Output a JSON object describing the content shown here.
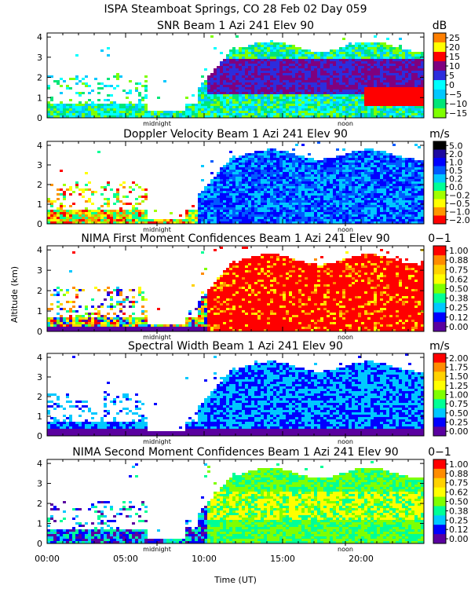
{
  "header": {
    "title": "ISPA Steamboat Springs, CO  28 Feb 02 Day 059"
  },
  "axes": {
    "ylabel": "Altitude (km)",
    "xlabel": "Time (UT)",
    "x_tick_labels": [
      "00:00",
      "05:00",
      "10:00",
      "15:00",
      "20:00"
    ],
    "y_tick_labels": [
      "0",
      "1",
      "2",
      "3",
      "4"
    ],
    "midnight_label": "midnight",
    "noon_label": "noon"
  },
  "chart_data": [
    {
      "type": "heatmap",
      "title": "SNR Beam 1 Azi 241 Elev 90",
      "units": "dB",
      "xlim": [
        0,
        24
      ],
      "ylim": [
        0,
        4.2
      ],
      "colorbar_ticks": [
        "25",
        "20",
        "15",
        "10",
        "5",
        "0",
        "−5",
        "−10",
        "−15"
      ],
      "colors": [
        "#ff7f00",
        "#ffff00",
        "#ff0000",
        "#7f007f",
        "#2d2ddd",
        "#00ffff",
        "#00c8ff",
        "#00e678",
        "#7fff00"
      ]
    },
    {
      "type": "heatmap",
      "title": "Doppler Velocity Beam 1 Azi 241 Elev 90",
      "units": "m/s",
      "xlim": [
        0,
        24
      ],
      "ylim": [
        0,
        4.2
      ],
      "colorbar_ticks": [
        "5.0",
        "2.0",
        "1.0",
        "0.5",
        "0.2",
        "0.0",
        "−0.2",
        "−0.5",
        "−1.0",
        "−2.0"
      ],
      "colors": [
        "#000000",
        "#1e0aa0",
        "#0000ff",
        "#005aff",
        "#00c8ff",
        "#00ff96",
        "#a0ff00",
        "#ffff00",
        "#ff9600",
        "#ff0000"
      ]
    },
    {
      "type": "heatmap",
      "title": "NIMA First Moment Confidences Beam 1 Azi 241 Elev 90",
      "units": "0−1",
      "xlim": [
        0,
        24
      ],
      "ylim": [
        0,
        4.2
      ],
      "colorbar_ticks": [
        "1.00",
        "0.88",
        "0.75",
        "0.62",
        "0.50",
        "0.38",
        "0.25",
        "0.12",
        "0.00"
      ],
      "colors": [
        "#ff0000",
        "#ff8c00",
        "#ffd200",
        "#ffff00",
        "#7fff00",
        "#00ff96",
        "#00c8ff",
        "#0000ff",
        "#5a00a0"
      ]
    },
    {
      "type": "heatmap",
      "title": "Spectral Width Beam 1 Azi 241 Elev 90",
      "units": "m/s",
      "xlim": [
        0,
        24
      ],
      "ylim": [
        0,
        4.2
      ],
      "colorbar_ticks": [
        "2.00",
        "1.75",
        "1.50",
        "1.25",
        "1.00",
        "0.75",
        "0.50",
        "0.25",
        "0.00"
      ],
      "colors": [
        "#ff0000",
        "#ff8c00",
        "#ffd200",
        "#ffff00",
        "#7fff00",
        "#00ff96",
        "#00c8ff",
        "#0000ff",
        "#5a00a0"
      ]
    },
    {
      "type": "heatmap",
      "title": "NIMA Second Moment Confidences Beam 1 Azi 241 Elev 90",
      "units": "0−1",
      "xlim": [
        0,
        24
      ],
      "ylim": [
        0,
        4.2
      ],
      "colorbar_ticks": [
        "1.00",
        "0.88",
        "0.75",
        "0.62",
        "0.50",
        "0.38",
        "0.25",
        "0.12",
        "0.00"
      ],
      "colors": [
        "#ff0000",
        "#ff8c00",
        "#ffd200",
        "#ffff00",
        "#7fff00",
        "#00ff96",
        "#00c8ff",
        "#0000ff",
        "#5a00a0"
      ]
    }
  ]
}
